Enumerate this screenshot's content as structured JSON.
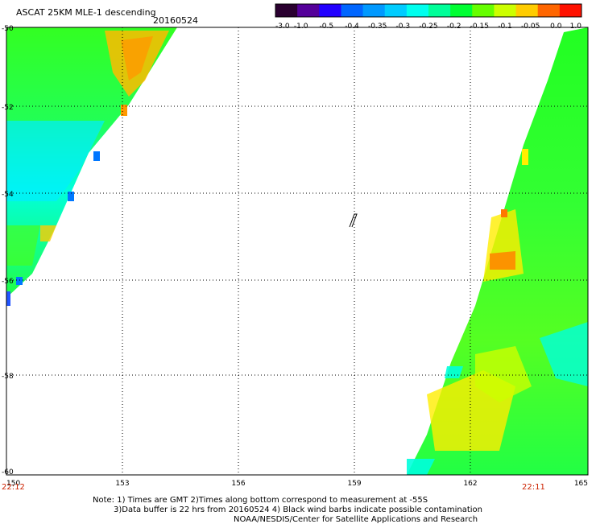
{
  "header": {
    "title": "ASCAT 25KM MLE-1 descending",
    "date": "20160524"
  },
  "colorbar": {
    "labels": [
      "-3.0",
      "-1.0",
      "-0.5",
      "-0.4",
      "-0.35",
      "-0.3",
      "-0.25",
      "-0.2",
      "-0.15",
      "-0.1",
      "-0.05",
      "0.0",
      "1.0"
    ],
    "colors": [
      "#2a0030",
      "#55009a",
      "#2200ff",
      "#0066ff",
      "#0099ff",
      "#00ccff",
      "#00ffee",
      "#00ff99",
      "#00ff33",
      "#66ff00",
      "#ccff00",
      "#ffcc00",
      "#ff6600",
      "#ff1100"
    ]
  },
  "map": {
    "lat_labels": [
      "-50",
      "-52",
      "-54",
      "-56",
      "-58",
      "-60"
    ],
    "lon_labels": [
      "150",
      "153",
      "156",
      "159",
      "162",
      "165"
    ],
    "fill_colors": {
      "green": "#22ff22",
      "cyan": "#00ffee",
      "yellow": "#ffff00",
      "orange": "#ff9900",
      "blue": "#0066ff"
    }
  },
  "times": {
    "left": "22:12",
    "right": "22:11"
  },
  "notes": {
    "line1": "Note: 1) Times are GMT 2)Times along bottom correspond to measurement at -55S",
    "line2": "3)Data buffer is 22 hrs from 20160524 4) Black wind barbs indicate possible contamination",
    "line3": "NOAA/NESDIS/Center for Satellite Applications and Research"
  }
}
